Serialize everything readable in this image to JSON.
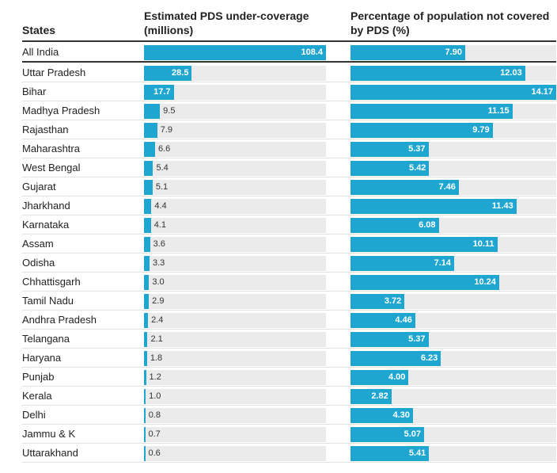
{
  "header": {
    "states": "States",
    "col1": "Estimated PDS under-coverage (millions)",
    "col2": "Percentage of population not covered by PDS (%)"
  },
  "chart_data": {
    "type": "bar",
    "orientation": "horizontal",
    "categories": [
      "All India",
      "Uttar Pradesh",
      "Bihar",
      "Madhya Pradesh",
      "Rajasthan",
      "Maharashtra",
      "West Bengal",
      "Gujarat",
      "Jharkhand",
      "Karnataka",
      "Assam",
      "Odisha",
      "Chhattisgarh",
      "Tamil Nadu",
      "Andhra Pradesh",
      "Telangana",
      "Haryana",
      "Punjab",
      "Kerala",
      "Delhi",
      "Jammu & K",
      "Uttarakhand"
    ],
    "series": [
      {
        "name": "Estimated PDS under-coverage (millions)",
        "values": [
          108.4,
          28.5,
          17.7,
          9.5,
          7.9,
          6.6,
          5.4,
          5.1,
          4.4,
          4.1,
          3.6,
          3.3,
          3.0,
          2.9,
          2.4,
          2.1,
          1.8,
          1.2,
          1.0,
          0.8,
          0.7,
          0.6
        ],
        "labels": [
          "108.4",
          "28.5",
          "17.7",
          "9.5",
          "7.9",
          "6.6",
          "5.4",
          "5.1",
          "4.4",
          "4.1",
          "3.6",
          "3.3",
          "3.0",
          "2.9",
          "2.4",
          "2.1",
          "1.8",
          "1.2",
          "1.0",
          "0.8",
          "0.7",
          "0.6"
        ],
        "xlim": [
          0,
          108.4
        ]
      },
      {
        "name": "Percentage of population not covered by PDS (%)",
        "values": [
          7.9,
          12.03,
          14.17,
          11.15,
          9.79,
          5.37,
          5.42,
          7.46,
          11.43,
          6.08,
          10.11,
          7.14,
          10.24,
          3.72,
          4.46,
          5.37,
          6.23,
          4.0,
          2.82,
          4.3,
          5.07,
          5.41
        ],
        "labels": [
          "7.90",
          "12.03",
          "14.17",
          "11.15",
          "9.79",
          "5.37",
          "5.42",
          "7.46",
          "11.43",
          "6.08",
          "10.11",
          "7.14",
          "10.24",
          "3.72",
          "4.46",
          "5.37",
          "6.23",
          "4.00",
          "2.82",
          "4.30",
          "5.07",
          "5.41"
        ],
        "xlim": [
          0,
          14.17
        ]
      }
    ],
    "bar_color": "#1ea6d1",
    "track_color": "#ebebeb",
    "grid": false,
    "legend": "none"
  }
}
